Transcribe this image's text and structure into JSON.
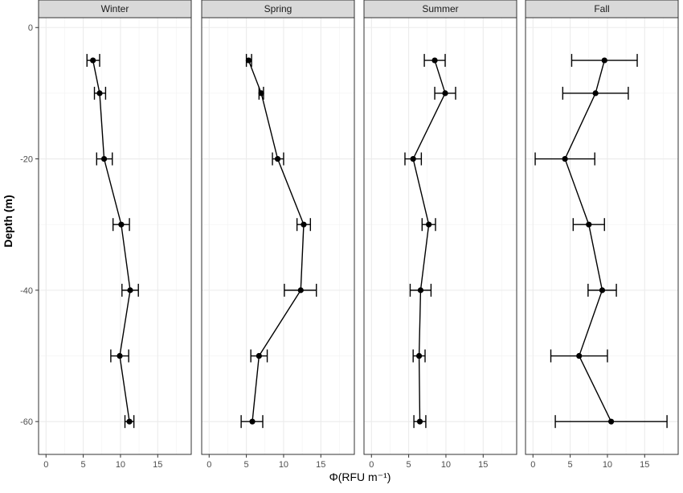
{
  "chart_data": {
    "type": "scatter",
    "xlabel": "Φ(RFU m⁻¹)",
    "ylabel": "Depth (m)",
    "xlim": [
      -1,
      19.5
    ],
    "ylim": [
      -65,
      1.5
    ],
    "x_ticks": [
      0,
      5,
      10,
      15
    ],
    "x_tick_labels": [
      "0",
      "5",
      "10",
      "15"
    ],
    "y_ticks": [
      0,
      -20,
      -40,
      -60
    ],
    "y_tick_labels": [
      "0",
      "-20",
      "-40",
      "-60"
    ],
    "grid": true,
    "legend": "none",
    "panels": [
      {
        "name": "Winter",
        "depth": [
          -5,
          -10,
          -20,
          -30,
          -40,
          -50,
          -60
        ],
        "x": [
          6.3,
          7.2,
          7.8,
          10.1,
          11.3,
          9.9,
          11.2
        ],
        "xmin": [
          5.5,
          6.5,
          6.8,
          9.0,
          10.2,
          8.7,
          10.6
        ],
        "xmax": [
          7.2,
          8.0,
          8.9,
          11.2,
          12.4,
          11.1,
          11.8
        ]
      },
      {
        "name": "Spring",
        "depth": [
          -5,
          -10,
          -20,
          -30,
          -40,
          -50,
          -60
        ],
        "x": [
          5.3,
          7.0,
          9.2,
          12.7,
          12.3,
          6.7,
          5.8
        ],
        "xmin": [
          5.0,
          6.7,
          8.5,
          11.8,
          10.1,
          5.6,
          4.3
        ],
        "xmax": [
          5.7,
          7.3,
          10.0,
          13.6,
          14.4,
          7.8,
          7.2
        ]
      },
      {
        "name": "Summer",
        "depth": [
          -5,
          -10,
          -20,
          -30,
          -40,
          -50,
          -60
        ],
        "x": [
          8.5,
          9.9,
          5.6,
          7.7,
          6.6,
          6.4,
          6.5
        ],
        "xmin": [
          7.1,
          8.5,
          4.5,
          6.8,
          5.2,
          5.6,
          5.7
        ],
        "xmax": [
          9.9,
          11.3,
          6.7,
          8.6,
          8.0,
          7.2,
          7.3
        ]
      },
      {
        "name": "Fall",
        "depth": [
          -5,
          -10,
          -20,
          -30,
          -40,
          -50,
          -60
        ],
        "x": [
          9.6,
          8.4,
          4.3,
          7.5,
          9.3,
          6.2,
          10.5
        ],
        "xmin": [
          5.2,
          4.0,
          0.3,
          5.4,
          7.4,
          2.4,
          3.0
        ],
        "xmax": [
          14.0,
          12.8,
          8.3,
          9.6,
          11.2,
          10.0,
          18.0
        ]
      }
    ]
  }
}
